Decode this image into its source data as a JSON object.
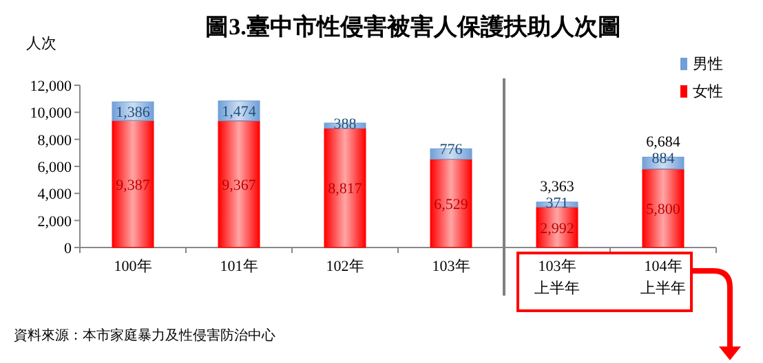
{
  "chart_data": {
    "type": "bar",
    "stacked": true,
    "title": "圖3.臺中市性侵害被害人保護扶助人次圖",
    "ylabel": "人次",
    "categories": [
      "100年",
      "101年",
      "102年",
      "103年",
      "103年上半年",
      "104年上半年"
    ],
    "series": [
      {
        "name": "女性",
        "color": "#ff0000",
        "values": [
          9387,
          9367,
          8817,
          6529,
          2992,
          5800
        ],
        "value_labels": [
          "9,387",
          "9,367",
          "8,817",
          "6,529",
          "2,992",
          "5,800"
        ]
      },
      {
        "name": "男性",
        "color": "#6f9fd8",
        "values": [
          1386,
          1474,
          388,
          776,
          371,
          884
        ],
        "value_labels": [
          "1,386",
          "1,474",
          "388",
          "776",
          "371",
          "884"
        ]
      }
    ],
    "totals": [
      null,
      null,
      null,
      null,
      "3,363",
      "6,684"
    ],
    "ylim": [
      0,
      12000
    ],
    "yticks": [
      {
        "value": 0,
        "label": "0"
      },
      {
        "value": 2000,
        "label": "2,000"
      },
      {
        "value": 4000,
        "label": "4,000"
      },
      {
        "value": 6000,
        "label": "6,000"
      },
      {
        "value": 8000,
        "label": "8,000"
      },
      {
        "value": 10000,
        "label": "10,000"
      },
      {
        "value": 12000,
        "label": "12,000"
      }
    ],
    "grid": false,
    "legend": "top right",
    "annotations": [
      "資料來源：本市家庭暴力及性侵害防治中心"
    ]
  }
}
